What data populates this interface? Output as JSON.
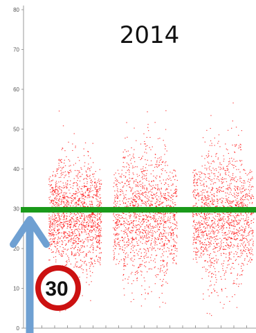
{
  "chart_data": {
    "type": "scatter",
    "title": "2014",
    "xlabel": "",
    "ylabel": "",
    "ylim": [
      0,
      80
    ],
    "y_ticks": [
      "0",
      "10",
      "20",
      "30",
      "40",
      "50",
      "60",
      "70",
      "80"
    ],
    "grid": false,
    "point_color": "#ff0000",
    "clusters": [
      {
        "center_y": 28,
        "spread": 7,
        "range": [
          3,
          61
        ]
      },
      {
        "center_y": 28,
        "spread": 8,
        "range": [
          3,
          60
        ]
      },
      {
        "center_y": 28,
        "spread": 8,
        "range": [
          3,
          58
        ]
      }
    ],
    "reference_line": {
      "y": 30,
      "color": "#1a9a1a"
    },
    "annotations": [
      {
        "type": "arrow",
        "points_to_y": 30,
        "color": "#6fa0d2"
      },
      {
        "type": "speed-limit-sign",
        "text": "30",
        "ring_color": "#cc1111"
      }
    ]
  }
}
